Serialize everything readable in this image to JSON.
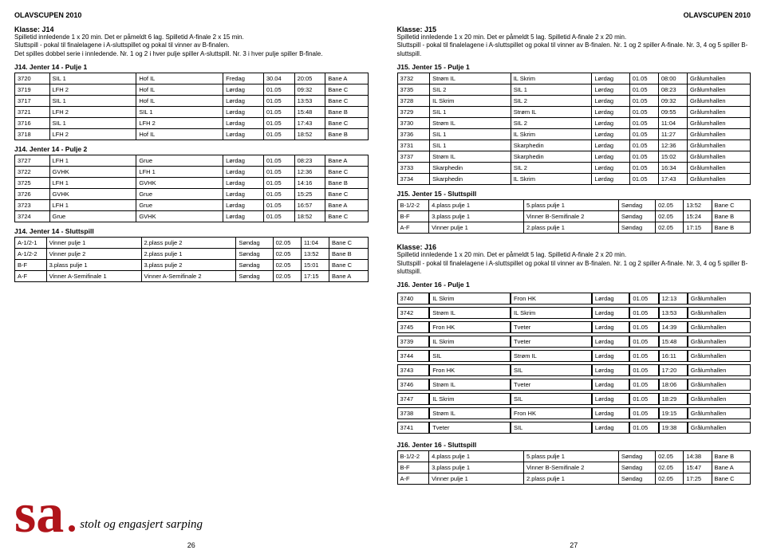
{
  "header": "OLAVSCUPEN 2010",
  "left": {
    "klasse_title": "Klasse: J14",
    "desc": "Spilletid innledende 1 x 20 min. Det er påmeldt 6 lag. Spilletid A-finale 2 x 15 min.\nSluttspill - pokal til finalelagene i A-sluttspillet og pokal til vinner av B-finalen.\nDet spilles dobbel serie i innledende. Nr. 1 og 2 i hver pulje spiller A-sluttspill. Nr. 3 i hver pulje spiller B-finale.",
    "p1_title": "J14. Jenter 14 - Pulje 1",
    "p1_rows": [
      [
        "3720",
        "SIL 1",
        "Hof IL",
        "Fredag",
        "30.04",
        "20:05",
        "Bane A"
      ],
      [
        "3719",
        "LFH 2",
        "Hof IL",
        "Lørdag",
        "01.05",
        "09:32",
        "Bane C"
      ],
      [
        "3717",
        "SIL 1",
        "Hof IL",
        "Lørdag",
        "01.05",
        "13:53",
        "Bane C"
      ],
      [
        "3721",
        "LFH 2",
        "SIL 1",
        "Lørdag",
        "01.05",
        "15:48",
        "Bane B"
      ],
      [
        "3716",
        "SIL 1",
        "LFH 2",
        "Lørdag",
        "01.05",
        "17:43",
        "Bane C"
      ],
      [
        "3718",
        "LFH 2",
        "Hof IL",
        "Lørdag",
        "01.05",
        "18:52",
        "Bane B"
      ]
    ],
    "p2_title": "J14. Jenter 14 - Pulje 2",
    "p2_rows": [
      [
        "3727",
        "LFH 1",
        "Grue",
        "Lørdag",
        "01.05",
        "08:23",
        "Bane A"
      ],
      [
        "3722",
        "GVHK",
        "LFH 1",
        "Lørdag",
        "01.05",
        "12:36",
        "Bane C"
      ],
      [
        "3725",
        "LFH 1",
        "GVHK",
        "Lørdag",
        "01.05",
        "14:16",
        "Bane B"
      ],
      [
        "3726",
        "GVHK",
        "Grue",
        "Lørdag",
        "01.05",
        "15:25",
        "Bane C"
      ],
      [
        "3723",
        "LFH 1",
        "Grue",
        "Lørdag",
        "01.05",
        "16:57",
        "Bane A"
      ],
      [
        "3724",
        "Grue",
        "GVHK",
        "Lørdag",
        "01.05",
        "18:52",
        "Bane C"
      ]
    ],
    "s_title": "J14. Jenter 14 - Sluttspill",
    "s_rows": [
      [
        "A-1/2-1",
        "Vinner pulje 1",
        "2.plass pulje 2",
        "Søndag",
        "02.05",
        "11:04",
        "Bane C"
      ],
      [
        "A-1/2-2",
        "Vinner pulje 2",
        "2.plass pulje 1",
        "Søndag",
        "02.05",
        "13:52",
        "Bane B"
      ],
      [
        "B-F",
        "3.plass pulje 1",
        "3.plass pulje 2",
        "Søndag",
        "02.05",
        "15:01",
        "Bane C"
      ],
      [
        "A-F",
        "Vinner A-Semifinale 1",
        "Vinner A-Semifinale 2",
        "Søndag",
        "02.05",
        "17:15",
        "Bane A"
      ]
    ],
    "logo_tag": "stolt og engasjert sarping",
    "pagenum": "26"
  },
  "right": {
    "klasse15_title": "Klasse: J15",
    "desc15": "Spilletid innledende 1 x 20 min. Det er påmeldt 5 lag. Spilletid A-finale 2 x 20 min.\nSluttspill - pokal til finalelagene i A-sluttspillet og pokal til vinner av B-finalen. Nr. 1 og 2 spiller A-finale. Nr. 3, 4 og 5 spiller B-sluttspill.",
    "p15_title": "J15. Jenter 15 - Pulje 1",
    "p15_rows": [
      [
        "3732",
        "Strøm IL",
        "IL Skrim",
        "Lørdag",
        "01.05",
        "08:00",
        "Grålumhallen"
      ],
      [
        "3735",
        "SIL 2",
        "SIL 1",
        "Lørdag",
        "01.05",
        "08:23",
        "Grålumhallen"
      ],
      [
        "3728",
        "IL Skrim",
        "SIL 2",
        "Lørdag",
        "01.05",
        "09:32",
        "Grålumhallen"
      ],
      [
        "3729",
        "SIL 1",
        "Strøm IL",
        "Lørdag",
        "01.05",
        "09:55",
        "Grålumhallen"
      ],
      [
        "3730",
        "Strøm IL",
        "SIL 2",
        "Lørdag",
        "01.05",
        "11:04",
        "Grålumhallen"
      ],
      [
        "3736",
        "SIL 1",
        "IL Skrim",
        "Lørdag",
        "01.05",
        "11:27",
        "Grålumhallen"
      ],
      [
        "3731",
        "SIL 1",
        "Skarphedin",
        "Lørdag",
        "01.05",
        "12:36",
        "Grålumhallen"
      ],
      [
        "3737",
        "Strøm IL",
        "Skarphedin",
        "Lørdag",
        "01.05",
        "15:02",
        "Grålumhallen"
      ],
      [
        "3733",
        "Skarphedin",
        "SIL 2",
        "Lørdag",
        "01.05",
        "16:34",
        "Grålumhallen"
      ],
      [
        "3734",
        "Skarphedin",
        "IL Skrim",
        "Lørdag",
        "01.05",
        "17:43",
        "Grålumhallen"
      ]
    ],
    "s15_title": "J15. Jenter 15 - Sluttspill",
    "s15_rows": [
      [
        "B-1/2-2",
        "4.plass pulje 1",
        "5.plass pulje 1",
        "Søndag",
        "02.05",
        "13:52",
        "Bane C"
      ],
      [
        "B-F",
        "3.plass pulje 1",
        "Vinner B-Semifinale 2",
        "Søndag",
        "02.05",
        "15:24",
        "Bane B"
      ],
      [
        "A-F",
        "Vinner pulje 1",
        "2.plass pulje 1",
        "Søndag",
        "02.05",
        "17:15",
        "Bane B"
      ]
    ],
    "klasse16_title": "Klasse: J16",
    "desc16": "Spilletid innledende 1 x 20 min. Det er påmeldt 5 lag. Spilletid A-finale 2 x 20 min.\nSluttspill - pokal til finalelagene i A-sluttspillet og pokal til vinner av B-finalen. Nr. 1 og 2 spiller A-finale. Nr. 3, 4 og 5 spiller B-sluttspill.",
    "p16_title": "J16. Jenter 16 - Pulje 1",
    "p16_rows": [
      [
        "3740",
        "IL Skrim",
        "Fron HK",
        "Lørdag",
        "01.05",
        "12:13",
        "Grålumhallen"
      ],
      [
        "3742",
        "Strøm IL",
        "IL Skrim",
        "Lørdag",
        "01.05",
        "13:53",
        "Grålumhallen"
      ],
      [
        "3745",
        "Fron HK",
        "Tveter",
        "Lørdag",
        "01.05",
        "14:39",
        "Grålumhallen"
      ],
      [
        "3739",
        "IL Skrim",
        "Tveter",
        "Lørdag",
        "01.05",
        "15:48",
        "Grålumhallen"
      ],
      [
        "3744",
        "SIL",
        "Strøm IL",
        "Lørdag",
        "01.05",
        "16:11",
        "Grålumhallen"
      ],
      [
        "3743",
        "Fron HK",
        "SIL",
        "Lørdag",
        "01.05",
        "17:20",
        "Grålumhallen"
      ],
      [
        "3746",
        "Strøm IL",
        "Tveter",
        "Lørdag",
        "01.05",
        "18:06",
        "Grålumhallen"
      ],
      [
        "3747",
        "IL Skrim",
        "SIL",
        "Lørdag",
        "01.05",
        "18:29",
        "Grålumhallen"
      ],
      [
        "3738",
        "Strøm IL",
        "Fron HK",
        "Lørdag",
        "01.05",
        "19:15",
        "Grålumhallen"
      ],
      [
        "3741",
        "Tveter",
        "SIL",
        "Lørdag",
        "01.05",
        "19:38",
        "Grålumhallen"
      ]
    ],
    "s16_title": "J16. Jenter 16 - Sluttspill",
    "s16_rows": [
      [
        "B-1/2-2",
        "4.plass pulje 1",
        "5.plass pulje 1",
        "Søndag",
        "02.05",
        "14:38",
        "Bane B"
      ],
      [
        "B-F",
        "3.plass pulje 1",
        "Vinner B-Semifinale 2",
        "Søndag",
        "02.05",
        "15:47",
        "Bane A"
      ],
      [
        "A-F",
        "Vinner pulje 1",
        "2.plass pulje 1",
        "Søndag",
        "02.05",
        "17:25",
        "Bane C"
      ]
    ],
    "pagenum": "27"
  }
}
